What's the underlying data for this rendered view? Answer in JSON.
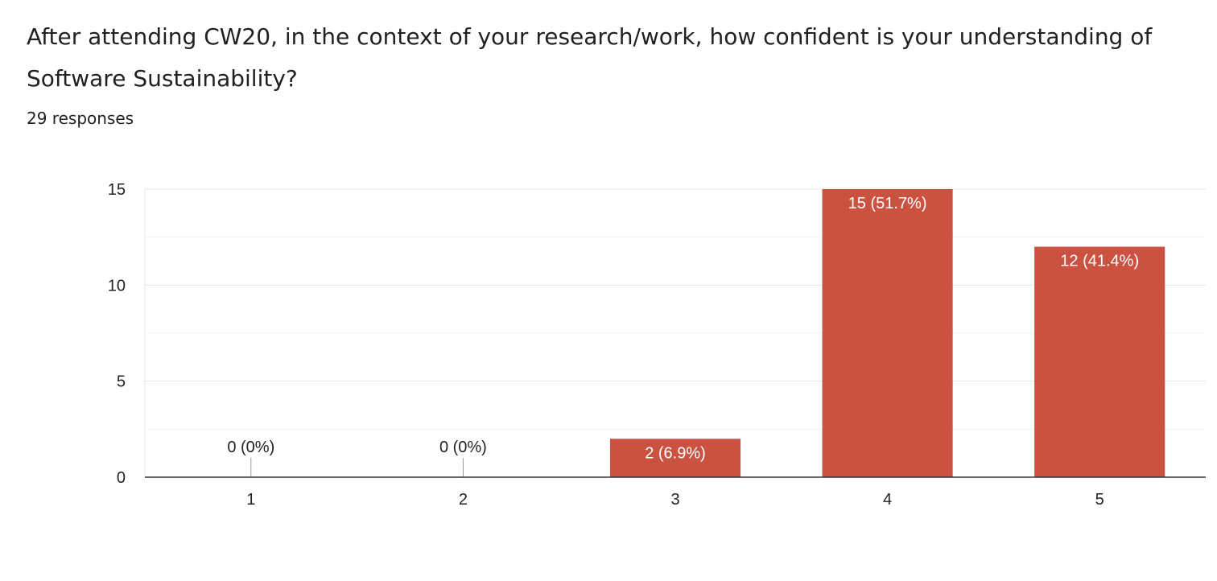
{
  "question": {
    "title": "After attending CW20, in the context of your research/work, how confident is your understanding of Software Sustainability?",
    "responses": "29 responses"
  },
  "chart_data": {
    "type": "bar",
    "categories": [
      "1",
      "2",
      "3",
      "4",
      "5"
    ],
    "values": [
      0,
      0,
      2,
      15,
      12
    ],
    "data_labels": [
      "0 (0%)",
      "0 (0%)",
      "2 (6.9%)",
      "15 (51.7%)",
      "12 (41.4%)"
    ],
    "yticks": [
      0,
      5,
      10,
      15
    ],
    "ylim": [
      0,
      15
    ],
    "grid": true,
    "bar_color": "#cb5241",
    "title": "",
    "xlabel": "",
    "ylabel": ""
  }
}
